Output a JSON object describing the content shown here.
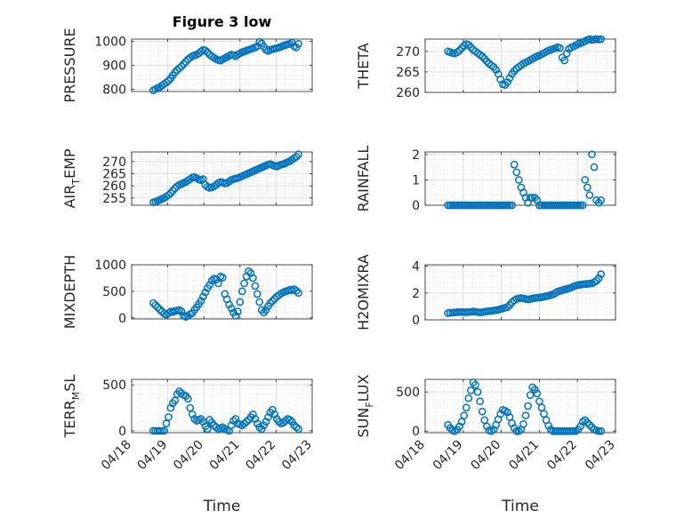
{
  "colors": {
    "marker": "#0072BD",
    "axis": "#262626",
    "grid": "#dedede"
  },
  "chart_data": [
    {
      "type": "scatter",
      "title": "Figure 3 low",
      "ylabel": "PRESSURE",
      "xlabel": "",
      "ylim": [
        790,
        1010
      ],
      "yticks": [
        800,
        900,
        1000
      ],
      "grid": true,
      "x": [
        0.6,
        0.66,
        0.72,
        0.78,
        0.84,
        0.9,
        0.96,
        1.02,
        1.08,
        1.14,
        1.2,
        1.26,
        1.32,
        1.38,
        1.44,
        1.5,
        1.56,
        1.62,
        1.68,
        1.74,
        1.8,
        1.86,
        1.92,
        1.98,
        2.04,
        2.1,
        2.16,
        2.22,
        2.28,
        2.34,
        2.4,
        2.46,
        2.52,
        2.58,
        2.64,
        2.7,
        2.76,
        2.82,
        2.88,
        2.94,
        3.0,
        3.06,
        3.12,
        3.18,
        3.24,
        3.3,
        3.36,
        3.42,
        3.48,
        3.54,
        3.6,
        3.66,
        3.72,
        3.78,
        3.84,
        3.9,
        3.96,
        4.02,
        4.08,
        4.14,
        4.2,
        4.26,
        4.32,
        4.38,
        4.44,
        4.5,
        4.56,
        4.62
      ],
      "y": [
        795,
        800,
        805,
        808,
        815,
        822,
        828,
        835,
        845,
        858,
        870,
        880,
        888,
        895,
        905,
        915,
        925,
        932,
        938,
        942,
        945,
        950,
        958,
        965,
        962,
        955,
        945,
        938,
        932,
        926,
        922,
        920,
        925,
        930,
        935,
        940,
        945,
        942,
        938,
        945,
        950,
        955,
        958,
        962,
        965,
        968,
        972,
        975,
        980,
        998,
        992,
        978,
        965,
        960,
        965,
        968,
        970,
        972,
        975,
        978,
        982,
        985,
        988,
        990,
        995,
        980,
        975,
        990
      ]
    },
    {
      "type": "scatter",
      "title": "",
      "ylabel": "THETA",
      "xlabel": "",
      "ylim": [
        260,
        273
      ],
      "yticks": [
        260,
        265,
        270
      ],
      "grid": true,
      "x": [
        0.6,
        0.66,
        0.72,
        0.78,
        0.84,
        0.9,
        0.96,
        1.02,
        1.08,
        1.14,
        1.2,
        1.26,
        1.32,
        1.38,
        1.44,
        1.5,
        1.56,
        1.62,
        1.68,
        1.74,
        1.8,
        1.86,
        1.92,
        1.98,
        2.04,
        2.1,
        2.16,
        2.22,
        2.28,
        2.34,
        2.4,
        2.46,
        2.52,
        2.58,
        2.64,
        2.7,
        2.76,
        2.82,
        2.88,
        2.94,
        3.0,
        3.06,
        3.12,
        3.18,
        3.24,
        3.3,
        3.36,
        3.42,
        3.48,
        3.54,
        3.6,
        3.66,
        3.72,
        3.78,
        3.84,
        3.9,
        3.96,
        4.02,
        4.08,
        4.14,
        4.2,
        4.26,
        4.32,
        4.38,
        4.44,
        4.5,
        4.56,
        4.62
      ],
      "y": [
        270.0,
        269.8,
        269.6,
        269.5,
        269.8,
        270.2,
        270.8,
        271.4,
        271.8,
        271.6,
        271.0,
        270.4,
        270.0,
        269.6,
        269.2,
        268.8,
        268.2,
        267.6,
        267.0,
        266.6,
        266.2,
        265.5,
        264.5,
        263.2,
        262.0,
        261.8,
        262.5,
        263.5,
        264.5,
        265.2,
        265.8,
        266.2,
        266.6,
        267.0,
        267.3,
        267.6,
        267.9,
        268.2,
        268.5,
        268.8,
        269.0,
        269.3,
        269.6,
        269.9,
        270.2,
        270.4,
        270.6,
        270.8,
        271.0,
        270.8,
        268.5,
        267.8,
        269.5,
        270.6,
        271.0,
        271.2,
        271.5,
        271.8,
        272.0,
        272.2,
        272.5,
        272.8,
        273.0,
        272.8,
        272.9,
        273.0,
        272.9,
        273.0
      ]
    },
    {
      "type": "scatter",
      "title": "",
      "ylabel": "AIR_TEMP",
      "xlabel": "",
      "ylim": [
        252,
        274
      ],
      "yticks": [
        255,
        260,
        265,
        270
      ],
      "grid": true,
      "x": [
        0.6,
        0.66,
        0.72,
        0.78,
        0.84,
        0.9,
        0.96,
        1.02,
        1.08,
        1.14,
        1.2,
        1.26,
        1.32,
        1.38,
        1.44,
        1.5,
        1.56,
        1.62,
        1.68,
        1.74,
        1.8,
        1.86,
        1.92,
        1.98,
        2.04,
        2.1,
        2.16,
        2.22,
        2.28,
        2.34,
        2.4,
        2.46,
        2.52,
        2.58,
        2.64,
        2.7,
        2.76,
        2.82,
        2.88,
        2.94,
        3.0,
        3.06,
        3.12,
        3.18,
        3.24,
        3.3,
        3.36,
        3.42,
        3.48,
        3.54,
        3.6,
        3.66,
        3.72,
        3.78,
        3.84,
        3.9,
        3.96,
        4.02,
        4.08,
        4.14,
        4.2,
        4.26,
        4.32,
        4.38,
        4.44,
        4.5,
        4.56,
        4.62
      ],
      "y": [
        253.2,
        253.4,
        253.8,
        254.2,
        254.6,
        255.0,
        255.6,
        256.2,
        257.0,
        258.0,
        259.0,
        259.8,
        260.4,
        260.8,
        261.2,
        261.6,
        262.2,
        262.8,
        263.4,
        263.6,
        263.2,
        262.6,
        262.4,
        262.8,
        260.4,
        259.6,
        259.2,
        259.4,
        259.8,
        260.4,
        261.2,
        261.6,
        261.4,
        261.0,
        261.2,
        261.8,
        262.4,
        262.8,
        263.0,
        263.2,
        263.6,
        264.0,
        264.4,
        264.8,
        265.2,
        265.6,
        266.0,
        266.4,
        266.8,
        267.2,
        267.6,
        268.0,
        268.4,
        268.8,
        269.0,
        268.6,
        268.2,
        268.0,
        268.4,
        268.8,
        269.0,
        269.4,
        269.8,
        270.2,
        270.8,
        271.4,
        272.0,
        273.0
      ]
    },
    {
      "type": "scatter",
      "title": "",
      "ylabel": "RAINFALL",
      "xlabel": "",
      "ylim": [
        0,
        2.1
      ],
      "yticks": [
        0,
        1,
        2
      ],
      "grid": true,
      "x": [
        0.6,
        0.66,
        0.72,
        0.78,
        0.84,
        0.9,
        0.96,
        1.02,
        1.08,
        1.14,
        1.2,
        1.26,
        1.32,
        1.38,
        1.44,
        1.5,
        1.56,
        1.62,
        1.68,
        1.74,
        1.8,
        1.86,
        1.92,
        1.98,
        2.04,
        2.1,
        2.16,
        2.22,
        2.28,
        2.34,
        2.4,
        2.46,
        2.52,
        2.58,
        2.64,
        2.7,
        2.76,
        2.82,
        2.88,
        2.94,
        3.0,
        3.06,
        3.12,
        3.18,
        3.24,
        3.3,
        3.36,
        3.42,
        3.48,
        3.54,
        3.6,
        3.66,
        3.72,
        3.78,
        3.84,
        3.9,
        3.96,
        4.02,
        4.08,
        4.14,
        4.2,
        4.26,
        4.32,
        4.38,
        4.44,
        4.5,
        4.56,
        4.62
      ],
      "y": [
        0,
        0,
        0,
        0,
        0,
        0,
        0,
        0,
        0,
        0,
        0,
        0,
        0,
        0,
        0,
        0,
        0,
        0,
        0,
        0,
        0,
        0,
        0,
        0,
        0,
        0,
        0,
        0,
        0,
        1.6,
        1.3,
        1.0,
        0.7,
        0.5,
        0.3,
        0.1,
        0.3,
        0.3,
        0.3,
        0.2,
        0,
        0,
        0,
        0,
        0,
        0,
        0,
        0,
        0,
        0,
        0,
        0,
        0,
        0,
        0,
        0,
        0,
        0,
        0,
        0,
        1.0,
        0.7,
        0.4,
        2.0,
        1.5,
        0.2,
        0.1,
        0.2
      ]
    },
    {
      "type": "scatter",
      "title": "",
      "ylabel": "MIXDEPTH",
      "xlabel": "",
      "ylim": [
        -20,
        1000
      ],
      "yticks": [
        0,
        500,
        1000
      ],
      "grid": true,
      "x": [
        0.6,
        0.66,
        0.72,
        0.78,
        0.84,
        0.9,
        0.96,
        1.02,
        1.08,
        1.14,
        1.2,
        1.26,
        1.32,
        1.38,
        1.44,
        1.5,
        1.56,
        1.62,
        1.68,
        1.74,
        1.8,
        1.86,
        1.92,
        1.98,
        2.04,
        2.1,
        2.16,
        2.22,
        2.28,
        2.34,
        2.4,
        2.46,
        2.52,
        2.58,
        2.64,
        2.7,
        2.76,
        2.82,
        2.88,
        2.94,
        3.0,
        3.06,
        3.12,
        3.18,
        3.24,
        3.3,
        3.36,
        3.42,
        3.48,
        3.54,
        3.6,
        3.66,
        3.72,
        3.78,
        3.84,
        3.9,
        3.96,
        4.02,
        4.08,
        4.14,
        4.2,
        4.26,
        4.32,
        4.38,
        4.44,
        4.5,
        4.56,
        4.62
      ],
      "y": [
        280,
        240,
        200,
        160,
        120,
        80,
        60,
        90,
        120,
        110,
        130,
        140,
        150,
        120,
        40,
        20,
        40,
        70,
        90,
        150,
        200,
        260,
        320,
        400,
        480,
        560,
        620,
        700,
        740,
        720,
        650,
        780,
        760,
        450,
        350,
        250,
        180,
        100,
        40,
        120,
        300,
        500,
        650,
        780,
        880,
        840,
        750,
        600,
        450,
        300,
        150,
        100,
        150,
        220,
        280,
        320,
        360,
        400,
        430,
        460,
        480,
        500,
        510,
        530,
        520,
        540,
        510,
        470
      ]
    },
    {
      "type": "scatter",
      "title": "",
      "ylabel": "H2OMIXRA",
      "xlabel": "",
      "ylim": [
        0,
        4.1
      ],
      "yticks": [
        0,
        2,
        4
      ],
      "grid": true,
      "x": [
        0.6,
        0.66,
        0.72,
        0.78,
        0.84,
        0.9,
        0.96,
        1.02,
        1.08,
        1.14,
        1.2,
        1.26,
        1.32,
        1.38,
        1.44,
        1.5,
        1.56,
        1.62,
        1.68,
        1.74,
        1.8,
        1.86,
        1.92,
        1.98,
        2.04,
        2.1,
        2.16,
        2.22,
        2.28,
        2.34,
        2.4,
        2.46,
        2.52,
        2.58,
        2.64,
        2.7,
        2.76,
        2.82,
        2.88,
        2.94,
        3.0,
        3.06,
        3.12,
        3.18,
        3.24,
        3.3,
        3.36,
        3.42,
        3.48,
        3.54,
        3.6,
        3.66,
        3.72,
        3.78,
        3.84,
        3.9,
        3.96,
        4.02,
        4.08,
        4.14,
        4.2,
        4.26,
        4.32,
        4.38,
        4.44,
        4.5,
        4.56,
        4.62
      ],
      "y": [
        0.5,
        0.52,
        0.54,
        0.55,
        0.57,
        0.58,
        0.58,
        0.57,
        0.56,
        0.58,
        0.6,
        0.62,
        0.6,
        0.58,
        0.55,
        0.57,
        0.6,
        0.63,
        0.65,
        0.66,
        0.7,
        0.72,
        0.75,
        0.8,
        0.85,
        0.9,
        0.95,
        1.1,
        1.3,
        1.45,
        1.55,
        1.6,
        1.62,
        1.6,
        1.55,
        1.52,
        1.55,
        1.6,
        1.62,
        1.65,
        1.66,
        1.68,
        1.72,
        1.76,
        1.8,
        1.85,
        1.9,
        2.0,
        2.1,
        2.15,
        2.2,
        2.25,
        2.3,
        2.35,
        2.4,
        2.5,
        2.55,
        2.6,
        2.62,
        2.64,
        2.66,
        2.68,
        2.7,
        2.72,
        2.8,
        2.9,
        3.1,
        3.4
      ]
    },
    {
      "type": "scatter",
      "title": "",
      "ylabel": "TERR_MSL",
      "xlabel": "Time",
      "ylim": [
        -20,
        560
      ],
      "yticks": [
        0,
        500
      ],
      "grid": true,
      "xticklabels": [
        "04/18",
        "04/19",
        "04/20",
        "04/21",
        "04/22",
        "04/23"
      ],
      "x": [
        0.6,
        0.66,
        0.72,
        0.78,
        0.84,
        0.9,
        0.96,
        1.02,
        1.08,
        1.14,
        1.2,
        1.26,
        1.32,
        1.38,
        1.44,
        1.5,
        1.56,
        1.62,
        1.68,
        1.74,
        1.8,
        1.86,
        1.92,
        1.98,
        2.04,
        2.1,
        2.16,
        2.22,
        2.28,
        2.34,
        2.4,
        2.46,
        2.52,
        2.58,
        2.64,
        2.7,
        2.76,
        2.82,
        2.88,
        2.94,
        3.0,
        3.06,
        3.12,
        3.18,
        3.24,
        3.3,
        3.36,
        3.42,
        3.48,
        3.54,
        3.6,
        3.66,
        3.72,
        3.78,
        3.84,
        3.9,
        3.96,
        4.02,
        4.08,
        4.14,
        4.2,
        4.26,
        4.32,
        4.38,
        4.44,
        4.5,
        4.56,
        4.62
      ],
      "y": [
        0,
        0,
        0,
        0,
        0,
        0,
        80,
        150,
        250,
        300,
        330,
        400,
        430,
        410,
        390,
        380,
        350,
        250,
        180,
        130,
        110,
        120,
        130,
        100,
        50,
        20,
        120,
        90,
        60,
        40,
        20,
        30,
        40,
        20,
        10,
        0,
        60,
        110,
        130,
        80,
        70,
        60,
        80,
        100,
        120,
        150,
        180,
        130,
        80,
        40,
        20,
        60,
        100,
        150,
        200,
        230,
        180,
        130,
        100,
        80,
        90,
        110,
        130,
        120,
        100,
        60,
        40,
        20
      ]
    },
    {
      "type": "scatter",
      "title": "",
      "ylabel": "SUN_FLUX",
      "xlabel": "Time",
      "ylim": [
        -20,
        660
      ],
      "yticks": [
        0,
        500
      ],
      "grid": true,
      "xticklabels": [
        "04/18",
        "04/19",
        "04/20",
        "04/21",
        "04/22",
        "04/23"
      ],
      "x": [
        0.6,
        0.66,
        0.72,
        0.78,
        0.84,
        0.9,
        0.96,
        1.02,
        1.08,
        1.14,
        1.2,
        1.26,
        1.32,
        1.38,
        1.44,
        1.5,
        1.56,
        1.62,
        1.68,
        1.74,
        1.8,
        1.86,
        1.92,
        1.98,
        2.04,
        2.1,
        2.16,
        2.22,
        2.28,
        2.34,
        2.4,
        2.46,
        2.52,
        2.58,
        2.64,
        2.7,
        2.76,
        2.82,
        2.88,
        2.94,
        3.0,
        3.06,
        3.12,
        3.18,
        3.24,
        3.3,
        3.36,
        3.42,
        3.48,
        3.54,
        3.6,
        3.66,
        3.72,
        3.78,
        3.84,
        3.9,
        3.96,
        4.02,
        4.08,
        4.14,
        4.2,
        4.26,
        4.32,
        4.38,
        4.44,
        4.5,
        4.56,
        4.62
      ],
      "y": [
        80,
        40,
        10,
        0,
        20,
        60,
        120,
        200,
        300,
        420,
        520,
        620,
        590,
        500,
        380,
        250,
        140,
        60,
        10,
        0,
        20,
        80,
        150,
        220,
        270,
        260,
        240,
        180,
        100,
        40,
        0,
        0,
        20,
        90,
        200,
        320,
        460,
        560,
        530,
        480,
        380,
        300,
        220,
        140,
        70,
        20,
        0,
        0,
        0,
        0,
        0,
        0,
        0,
        0,
        0,
        0,
        0,
        20,
        60,
        120,
        140,
        110,
        80,
        50,
        20,
        10,
        0,
        0
      ]
    }
  ]
}
